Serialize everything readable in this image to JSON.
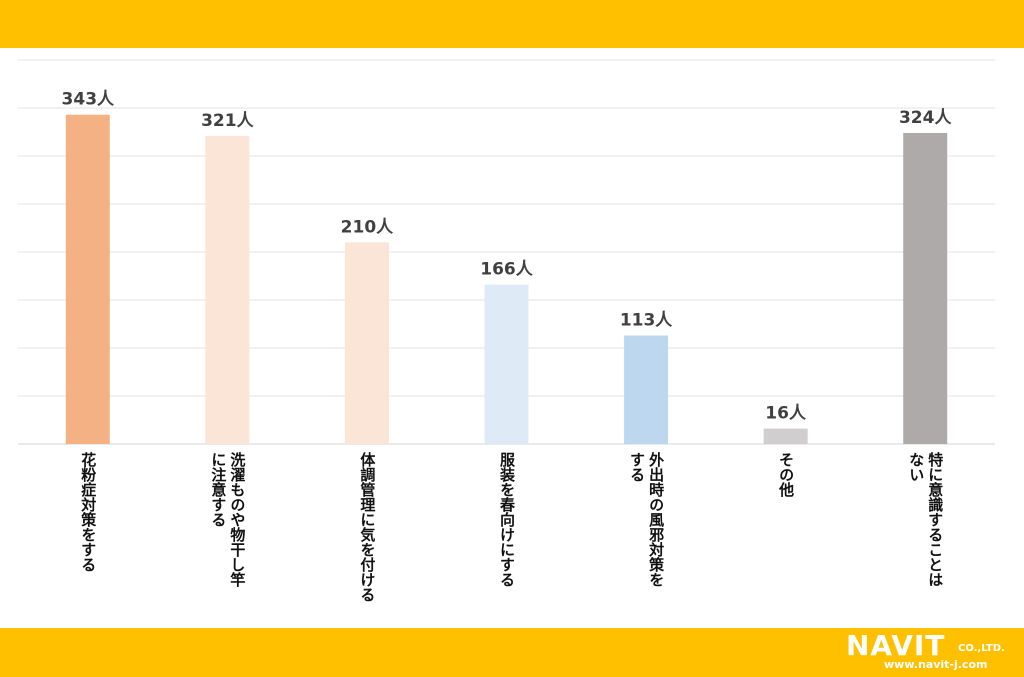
{
  "chart_data": {
    "type": "bar",
    "categories": [
      "花粉症対策をする",
      "洗濯ものや物干し竿\nに注意する",
      "体調管理に気を付ける",
      "服装を春向けにする",
      "外出時の風邪対策を\nする",
      "その他",
      "特に意識することは\nない"
    ],
    "values": [
      343,
      321,
      210,
      166,
      113,
      16,
      324
    ],
    "data_labels": [
      "343人",
      "321人",
      "210人",
      "166人",
      "113人",
      "16人",
      "324人"
    ],
    "colors": [
      "#f4b183",
      "#fbe5d6",
      "#fbe5d6",
      "#deebf7",
      "#bdd7ee",
      "#d0cece",
      "#aeaaaa"
    ],
    "ylim": [
      0,
      400
    ],
    "grid": true,
    "legend": "none"
  },
  "logo": {
    "main": "NAVIT",
    "suffix": "CO.,LTD.",
    "url": "www.navit-j.com"
  }
}
